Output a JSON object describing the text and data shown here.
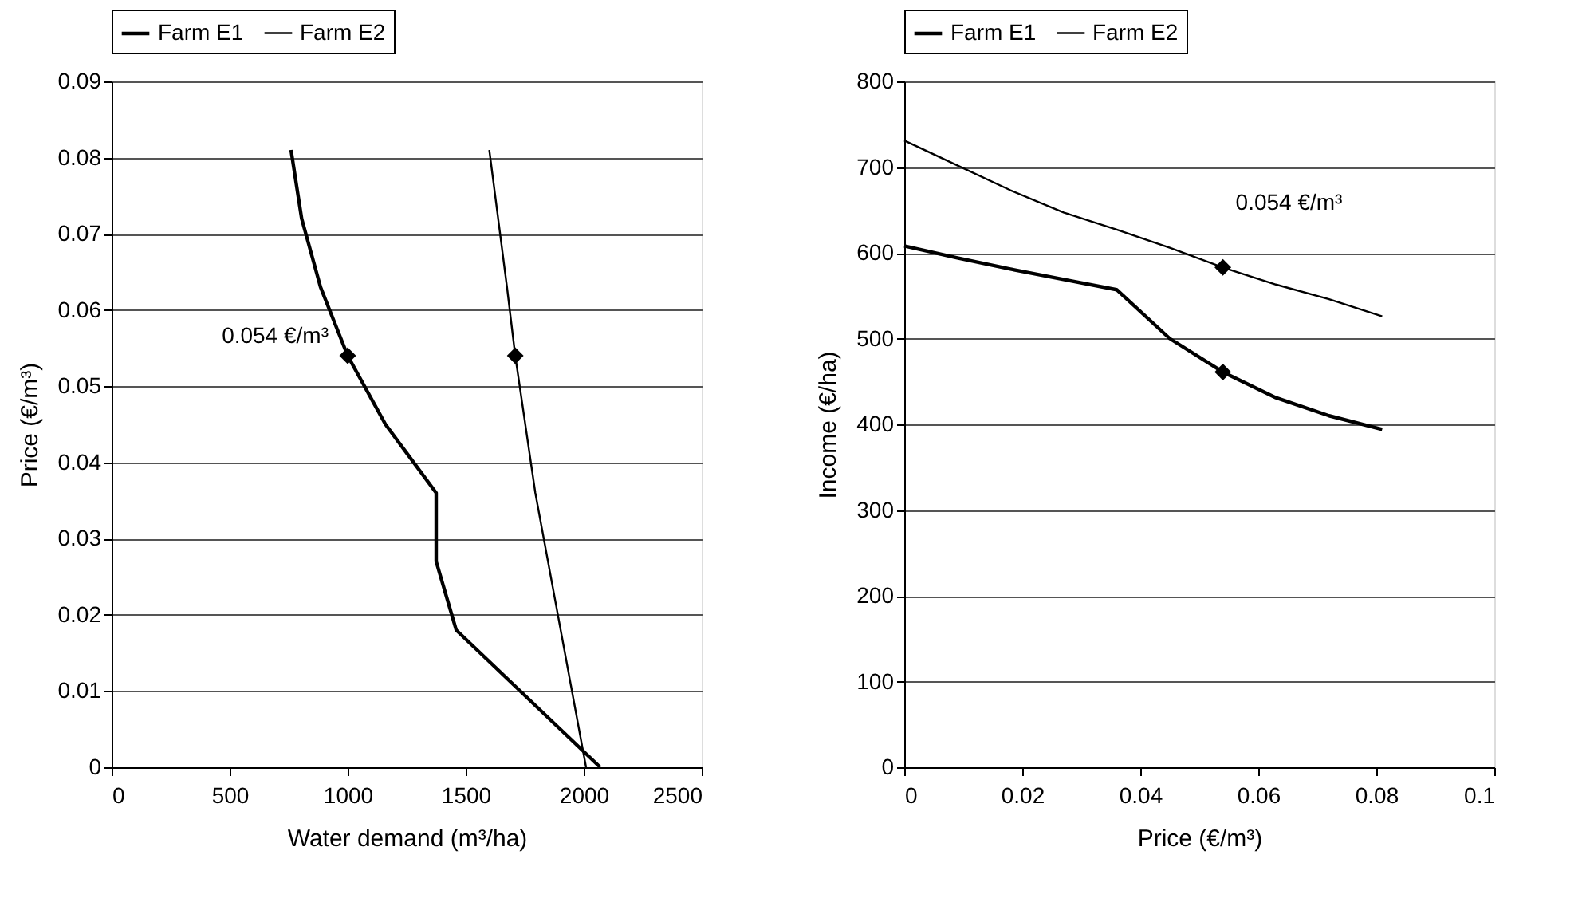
{
  "chart_data": [
    {
      "type": "line",
      "xlabel": "Water demand (m³/ha)",
      "ylabel": "Price (€/m³)",
      "xlim": [
        0,
        2500
      ],
      "xticks": [
        0,
        500,
        1000,
        1500,
        2000,
        2500
      ],
      "ylim": [
        0,
        0.09
      ],
      "yticks": [
        0,
        0.01,
        0.02,
        0.03,
        0.04,
        0.05,
        0.06,
        0.07,
        0.08,
        0.09
      ],
      "grid": "y",
      "legend": "top",
      "series": [
        {
          "name": "Farm E1",
          "color": "#000000",
          "x": [
            2070,
            1460,
            1375,
            1375,
            1160,
            1000,
            885,
            805,
            760
          ],
          "values": [
            0,
            0.018,
            0.027,
            0.036,
            0.045,
            0.054,
            0.063,
            0.072,
            0.081
          ]
        },
        {
          "name": "Farm E2",
          "color": "#000000",
          "x": [
            2010,
            1795,
            1710,
            1675,
            1600
          ],
          "values": [
            0,
            0.036,
            0.054,
            0.063,
            0.081
          ]
        },
        {
          "type": "scatter",
          "marker": "diamond",
          "color": "#000000",
          "x": [
            1000,
            1710
          ],
          "values": [
            0.054,
            0.054
          ]
        }
      ],
      "annotations": [
        {
          "text": "0.054 €/m³",
          "x": 1000,
          "y": 0.054
        }
      ]
    },
    {
      "type": "line",
      "xlabel": "Price (€/m³)",
      "ylabel": "Income (€/ha)",
      "xlim": [
        0,
        0.1
      ],
      "xticks": [
        0,
        0.02,
        0.04,
        0.06,
        0.08,
        0.1
      ],
      "ylim": [
        0,
        800
      ],
      "yticks": [
        0,
        100,
        200,
        300,
        400,
        500,
        600,
        700,
        800
      ],
      "grid": "y",
      "legend": "top",
      "series": [
        {
          "name": "Farm E1",
          "color": "#000000",
          "x": [
            0,
            0.009,
            0.018,
            0.027,
            0.036,
            0.045,
            0.054,
            0.063,
            0.072,
            0.081
          ],
          "values": [
            608,
            594,
            581,
            569,
            557,
            500,
            461,
            431,
            410,
            394
          ]
        },
        {
          "name": "Farm E2",
          "color": "#000000",
          "x": [
            0,
            0.009,
            0.018,
            0.027,
            0.036,
            0.045,
            0.054,
            0.063,
            0.072,
            0.081
          ],
          "values": [
            731,
            702,
            673,
            647,
            627,
            606,
            583,
            563,
            546,
            526
          ]
        },
        {
          "type": "scatter",
          "marker": "diamond",
          "color": "#000000",
          "x": [
            0.054,
            0.054
          ],
          "values": [
            461,
            583
          ]
        }
      ],
      "annotations": [
        {
          "text": "0.054 €/m³",
          "x": 0.054,
          "y": 583
        }
      ]
    }
  ]
}
